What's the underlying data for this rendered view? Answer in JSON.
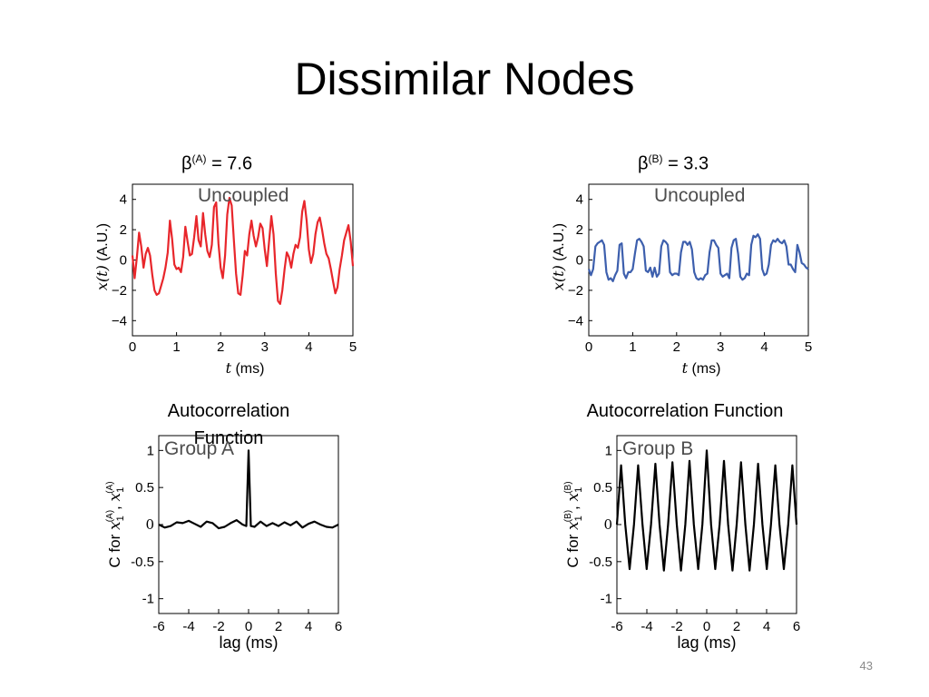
{
  "slide": {
    "title": "Dissimilar Nodes",
    "page_number": "43",
    "beta_a": {
      "symbol": "β",
      "sup": "(A)",
      "value": " = 7.6"
    },
    "beta_b": {
      "symbol": "β",
      "sup": "(B)",
      "value": " = 3.3"
    },
    "acf_title_a": "Autocorrelation Function",
    "acf_title_b": "Autocorrelation Function"
  },
  "colors": {
    "series_a": "#e8262b",
    "series_b": "#3d5fad",
    "acf": "#000000"
  },
  "chart_data": [
    {
      "type": "line",
      "label": "Uncoupled",
      "xlabel": "t (ms)",
      "ylabel": "x(t) (A.U.)",
      "xlim": [
        0,
        5
      ],
      "ylim": [
        -5,
        5
      ],
      "xticks": [
        "0",
        "1",
        "2",
        "3",
        "4",
        "5"
      ],
      "yticks": [
        "4",
        "2",
        "0",
        "−2",
        "−4"
      ],
      "x": [
        0.0,
        0.05,
        0.1,
        0.15,
        0.2,
        0.25,
        0.3,
        0.35,
        0.4,
        0.45,
        0.5,
        0.55,
        0.6,
        0.65,
        0.7,
        0.75,
        0.8,
        0.85,
        0.9,
        0.95,
        1.0,
        1.05,
        1.1,
        1.15,
        1.2,
        1.25,
        1.3,
        1.35,
        1.4,
        1.45,
        1.5,
        1.55,
        1.6,
        1.65,
        1.7,
        1.75,
        1.8,
        1.85,
        1.9,
        1.95,
        2.0,
        2.05,
        2.1,
        2.15,
        2.2,
        2.25,
        2.3,
        2.35,
        2.4,
        2.45,
        2.5,
        2.55,
        2.6,
        2.65,
        2.7,
        2.75,
        2.8,
        2.85,
        2.9,
        2.95,
        3.0,
        3.05,
        3.1,
        3.15,
        3.2,
        3.25,
        3.3,
        3.35,
        3.4,
        3.45,
        3.5,
        3.55,
        3.6,
        3.65,
        3.7,
        3.75,
        3.8,
        3.85,
        3.9,
        3.95,
        4.0,
        4.05,
        4.1,
        4.15,
        4.2,
        4.25,
        4.3,
        4.35,
        4.4,
        4.45,
        4.5,
        4.55,
        4.6,
        4.65,
        4.7,
        4.75,
        4.8,
        4.85,
        4.9,
        4.95,
        5.0
      ],
      "y": [
        0.3,
        -1.2,
        0.2,
        1.8,
        0.9,
        -0.5,
        0.4,
        0.8,
        0.3,
        -1.0,
        -2.0,
        -2.3,
        -2.2,
        -1.7,
        -1.2,
        -0.5,
        0.5,
        2.6,
        1.4,
        -0.3,
        -0.6,
        -0.5,
        -0.8,
        0.2,
        2.2,
        1.2,
        0.3,
        0.4,
        1.5,
        2.9,
        1.3,
        0.9,
        3.1,
        1.7,
        0.6,
        0.2,
        1.0,
        3.5,
        3.8,
        1.1,
        -0.5,
        -1.2,
        0.3,
        3.0,
        4.1,
        3.6,
        1.3,
        -0.9,
        -2.2,
        -2.3,
        -1.0,
        0.6,
        0.3,
        1.7,
        2.6,
        1.6,
        0.9,
        1.5,
        2.4,
        2.1,
        0.7,
        -0.4,
        1.3,
        2.9,
        1.7,
        -0.9,
        -2.7,
        -2.9,
        -2.0,
        -0.6,
        0.5,
        0.2,
        -0.5,
        0.4,
        1.0,
        0.8,
        1.5,
        3.2,
        3.9,
        2.6,
        0.7,
        -0.2,
        0.4,
        1.7,
        2.5,
        2.8,
        2.0,
        1.1,
        0.4,
        0.1,
        -0.6,
        -1.4,
        -2.2,
        -1.8,
        -0.6,
        0.3,
        1.3,
        1.8,
        2.3,
        1.2,
        -0.4
      ]
    },
    {
      "type": "line",
      "label": "Uncoupled",
      "xlabel": "t (ms)",
      "ylabel": "x(t) (A.U.)",
      "xlim": [
        0,
        5
      ],
      "ylim": [
        -5,
        5
      ],
      "xticks": [
        "0",
        "1",
        "2",
        "3",
        "4",
        "5"
      ],
      "yticks": [
        "4",
        "2",
        "0",
        "−2",
        "−4"
      ],
      "x": [
        0.0,
        0.05,
        0.1,
        0.15,
        0.2,
        0.25,
        0.3,
        0.35,
        0.4,
        0.45,
        0.5,
        0.55,
        0.6,
        0.65,
        0.7,
        0.75,
        0.8,
        0.85,
        0.9,
        0.95,
        1.0,
        1.05,
        1.1,
        1.15,
        1.2,
        1.25,
        1.3,
        1.35,
        1.4,
        1.45,
        1.5,
        1.55,
        1.6,
        1.65,
        1.7,
        1.75,
        1.8,
        1.85,
        1.9,
        1.95,
        2.0,
        2.05,
        2.1,
        2.15,
        2.2,
        2.25,
        2.3,
        2.35,
        2.4,
        2.45,
        2.5,
        2.55,
        2.6,
        2.65,
        2.7,
        2.75,
        2.8,
        2.85,
        2.9,
        2.95,
        3.0,
        3.05,
        3.1,
        3.15,
        3.2,
        3.25,
        3.3,
        3.35,
        3.4,
        3.45,
        3.5,
        3.55,
        3.6,
        3.65,
        3.7,
        3.75,
        3.8,
        3.85,
        3.9,
        3.95,
        4.0,
        4.05,
        4.1,
        4.15,
        4.2,
        4.25,
        4.3,
        4.35,
        4.4,
        4.45,
        4.5,
        4.55,
        4.6,
        4.65,
        4.7,
        4.75,
        4.8,
        4.85,
        4.9,
        4.95,
        5.0
      ],
      "y": [
        -0.6,
        -1.0,
        -0.6,
        0.9,
        1.1,
        1.2,
        1.3,
        1.0,
        -0.8,
        -1.3,
        -1.2,
        -1.4,
        -1.0,
        -0.7,
        1.0,
        1.1,
        -0.9,
        -1.2,
        -0.8,
        -0.8,
        -0.6,
        0.4,
        1.3,
        1.4,
        1.2,
        0.9,
        -0.7,
        -0.8,
        -0.5,
        -1.1,
        -0.5,
        -1.1,
        -0.9,
        0.9,
        1.3,
        1.2,
        1.0,
        -0.8,
        -1.0,
        -0.9,
        -0.9,
        -1.0,
        0.5,
        1.2,
        1.2,
        1.0,
        1.2,
        0.7,
        -0.8,
        -1.2,
        -1.3,
        -1.2,
        -1.3,
        -1.0,
        -0.9,
        0.5,
        1.3,
        1.3,
        1.0,
        0.8,
        -0.9,
        -1.1,
        -1.0,
        -0.9,
        -1.2,
        0.8,
        1.3,
        1.4,
        0.4,
        -1.1,
        -1.3,
        -1.2,
        -0.9,
        -1.0,
        1.0,
        1.6,
        1.5,
        1.7,
        1.4,
        -0.6,
        -1.0,
        -0.9,
        -0.3,
        1.0,
        1.3,
        1.2,
        1.4,
        1.2,
        1.1,
        1.3,
        0.9,
        -0.3,
        -0.3,
        -0.6,
        -0.8,
        1.0,
        0.5,
        -0.2,
        -0.3,
        -0.5,
        -0.6
      ]
    },
    {
      "type": "line",
      "label": "Group A",
      "xlabel": "lag (ms)",
      "ylabel": "C for x1(A), x1(A)",
      "xlim": [
        -6,
        6
      ],
      "ylim": [
        -1.2,
        1.2
      ],
      "xticks": [
        "-6",
        "-4",
        "-2",
        "0",
        "2",
        "4",
        "6"
      ],
      "yticks": [
        "1",
        "0.5",
        "0",
        "-0.5",
        "-1"
      ],
      "x": [
        -6.0,
        -5.6,
        -5.2,
        -4.8,
        -4.4,
        -4.0,
        -3.6,
        -3.2,
        -2.8,
        -2.4,
        -2.0,
        -1.6,
        -1.2,
        -0.8,
        -0.4,
        -0.15,
        0.0,
        0.15,
        0.4,
        0.8,
        1.2,
        1.6,
        2.0,
        2.4,
        2.8,
        3.2,
        3.6,
        4.0,
        4.4,
        4.8,
        5.2,
        5.6,
        6.0
      ],
      "y": [
        0.0,
        -0.04,
        -0.02,
        0.03,
        0.02,
        0.05,
        0.01,
        -0.03,
        0.04,
        0.02,
        -0.05,
        -0.03,
        0.02,
        0.06,
        0.0,
        -0.02,
        1.0,
        -0.02,
        -0.03,
        0.04,
        -0.02,
        0.02,
        -0.02,
        0.03,
        -0.01,
        0.04,
        -0.04,
        0.01,
        0.04,
        0.0,
        -0.03,
        -0.04,
        0.0
      ]
    },
    {
      "type": "line",
      "label": "Group B",
      "xlabel": "lag (ms)",
      "ylabel": "C for x1(B), x1(B)",
      "xlim": [
        -6,
        6
      ],
      "ylim": [
        -1.2,
        1.2
      ],
      "xticks": [
        "-6",
        "-4",
        "-2",
        "0",
        "2",
        "4",
        "6"
      ],
      "yticks": [
        "1",
        "0.5",
        "0",
        "-0.5",
        "-1"
      ],
      "x": [
        -6.0,
        -5.72,
        -5.44,
        -5.15,
        -4.86,
        -4.58,
        -4.29,
        -4.01,
        -3.72,
        -3.43,
        -3.15,
        -2.86,
        -2.58,
        -2.29,
        -2.0,
        -1.72,
        -1.43,
        -1.15,
        -0.86,
        -0.57,
        -0.29,
        0.0,
        0.29,
        0.57,
        0.86,
        1.15,
        1.43,
        1.72,
        2.0,
        2.29,
        2.58,
        2.86,
        3.15,
        3.43,
        3.72,
        4.01,
        4.29,
        4.58,
        4.86,
        5.15,
        5.44,
        5.72,
        6.0
      ],
      "y": [
        0.0,
        0.8,
        0.0,
        -0.6,
        0.0,
        0.8,
        0.0,
        -0.6,
        0.0,
        0.82,
        0.0,
        -0.62,
        0.0,
        0.84,
        0.0,
        -0.62,
        0.0,
        0.86,
        0.0,
        -0.6,
        0.0,
        1.0,
        0.0,
        -0.6,
        0.0,
        0.86,
        0.0,
        -0.62,
        0.0,
        0.84,
        0.0,
        -0.62,
        0.0,
        0.82,
        0.0,
        -0.6,
        0.0,
        0.8,
        0.0,
        -0.6,
        0.0,
        0.8,
        0.0
      ]
    }
  ]
}
